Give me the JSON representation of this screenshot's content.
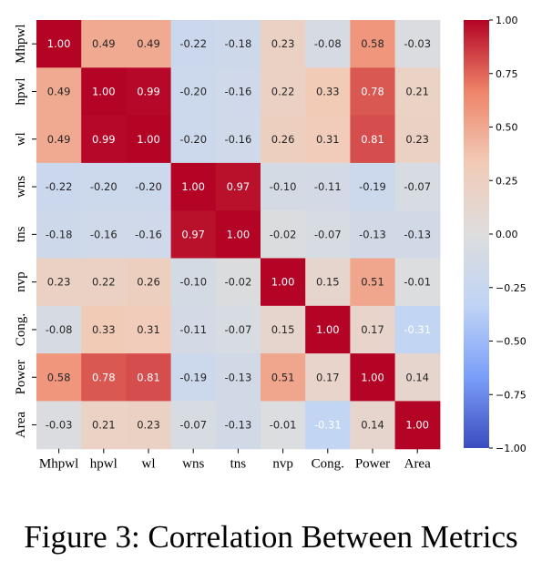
{
  "caption": "Figure 3: Correlation Between Metrics",
  "chart_data": {
    "type": "heatmap",
    "title": "",
    "labels": [
      "Mhpwl",
      "hpwl",
      "wl",
      "wns",
      "tns",
      "nvp",
      "Cong.",
      "Power",
      "Area"
    ],
    "values": [
      [
        1.0,
        0.49,
        0.49,
        -0.22,
        -0.18,
        0.23,
        -0.08,
        0.58,
        -0.03
      ],
      [
        0.49,
        1.0,
        0.99,
        -0.2,
        -0.16,
        0.22,
        0.33,
        0.78,
        0.21
      ],
      [
        0.49,
        0.99,
        1.0,
        -0.2,
        -0.16,
        0.26,
        0.31,
        0.81,
        0.23
      ],
      [
        -0.22,
        -0.2,
        -0.2,
        1.0,
        0.97,
        -0.1,
        -0.11,
        -0.19,
        -0.07
      ],
      [
        -0.18,
        -0.16,
        -0.16,
        0.97,
        1.0,
        -0.02,
        -0.07,
        -0.13,
        -0.13
      ],
      [
        0.23,
        0.22,
        0.26,
        -0.1,
        -0.02,
        1.0,
        0.15,
        0.51,
        -0.01
      ],
      [
        -0.08,
        0.33,
        0.31,
        -0.11,
        -0.07,
        0.15,
        1.0,
        0.17,
        -0.31
      ],
      [
        0.58,
        0.78,
        0.81,
        -0.19,
        -0.13,
        0.51,
        0.17,
        1.0,
        0.14
      ],
      [
        -0.03,
        0.21,
        0.23,
        -0.07,
        -0.13,
        -0.01,
        -0.31,
        0.14,
        1.0
      ]
    ],
    "colorbar": {
      "range": [
        -1.0,
        1.0
      ],
      "ticks": [
        1.0,
        0.75,
        0.5,
        0.25,
        0.0,
        -0.25,
        -0.5,
        -0.75,
        -1.0
      ],
      "tick_labels": [
        "1.00",
        "0.75",
        "0.50",
        "0.25",
        "0.00",
        "−0.25",
        "−0.50",
        "−0.75",
        "−1.00"
      ],
      "colormap": "coolwarm",
      "colormap_stops": [
        "#3b4cc0",
        "#7b9ff9",
        "#c0d4f5",
        "#dddddd",
        "#f2cbb7",
        "#ee8468",
        "#b40426"
      ]
    }
  }
}
